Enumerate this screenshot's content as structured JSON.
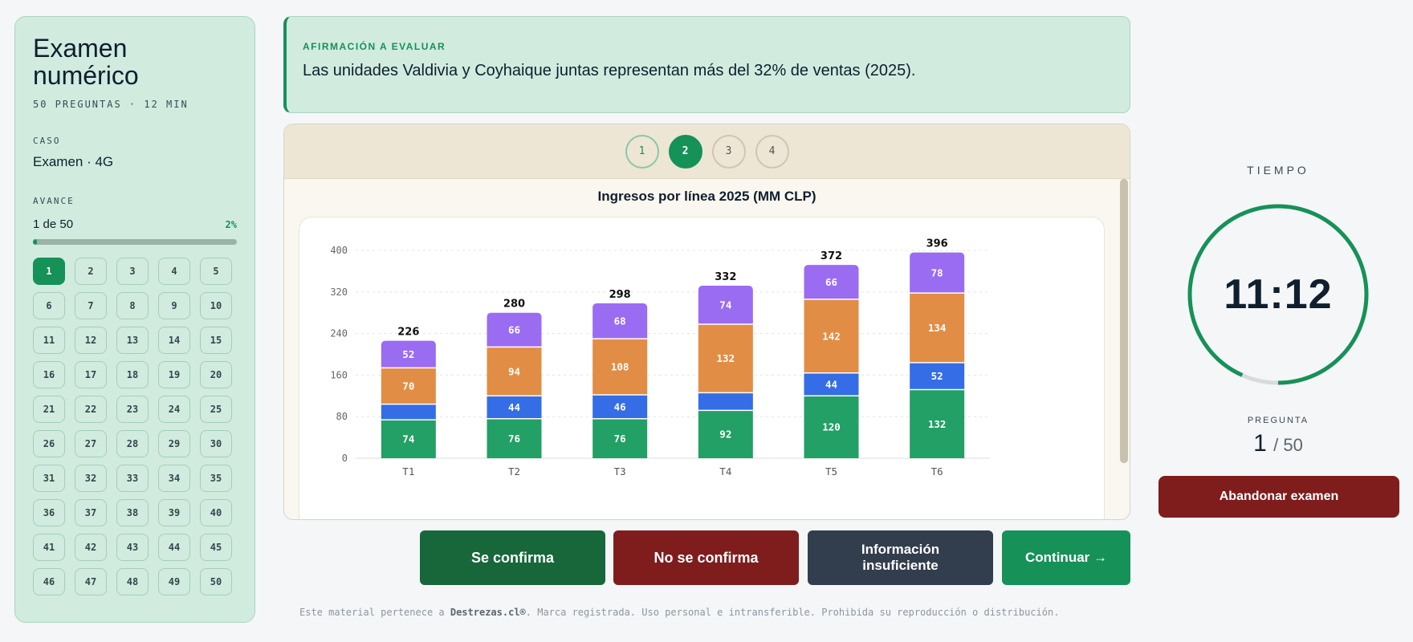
{
  "sidebar": {
    "title": "Examen numérico",
    "subtitle": "50 PREGUNTAS · 12 MIN",
    "caso_label": "CASO",
    "caso_value": "Examen · 4G",
    "avance_label": "AVANCE",
    "avance_text": "1 de 50",
    "avance_pct": "2%",
    "progress_fraction": 0.02,
    "questions": [
      "1",
      "2",
      "3",
      "4",
      "5",
      "6",
      "7",
      "8",
      "9",
      "10",
      "11",
      "12",
      "13",
      "14",
      "15",
      "16",
      "17",
      "18",
      "19",
      "20",
      "21",
      "22",
      "23",
      "24",
      "25",
      "26",
      "27",
      "28",
      "29",
      "30",
      "31",
      "32",
      "33",
      "34",
      "35",
      "36",
      "37",
      "38",
      "39",
      "40",
      "41",
      "42",
      "43",
      "44",
      "45",
      "46",
      "47",
      "48",
      "49",
      "50"
    ],
    "active_question": "1"
  },
  "statement": {
    "label": "AFIRMACIÓN A EVALUAR",
    "text": "Las unidades Valdivia y Coyhaique juntas representan más del 32% de ventas (2025)."
  },
  "panel": {
    "tabs": [
      "1",
      "2",
      "3",
      "4"
    ],
    "active_tab": "2",
    "visited_tabs": [
      "1"
    ]
  },
  "chart_data": {
    "type": "bar",
    "stacked": true,
    "title": "Ingresos por línea 2025 (MM CLP)",
    "categories": [
      "T1",
      "T2",
      "T3",
      "T4",
      "T5",
      "T6"
    ],
    "series": [
      {
        "values": [
          74,
          76,
          76,
          92,
          120,
          132
        ],
        "color": "#22a065"
      },
      {
        "values": [
          30,
          44,
          46,
          34,
          44,
          52
        ],
        "color": "#356de6"
      },
      {
        "values": [
          70,
          94,
          108,
          132,
          142,
          134
        ],
        "color": "#e28d45"
      },
      {
        "values": [
          52,
          66,
          68,
          74,
          66,
          78
        ],
        "color": "#9a6cf2"
      }
    ],
    "totals": [
      226,
      280,
      298,
      332,
      372,
      396
    ],
    "yticks": [
      0,
      80,
      160,
      240,
      320,
      400
    ],
    "ylim": [
      0,
      400
    ],
    "grid": true
  },
  "buttons": {
    "confirm": "Se confirma",
    "not_confirm": "No se confirma",
    "insufficient": "Información insuficiente",
    "continue": "Continuar →"
  },
  "footer": {
    "prefix": "Este material pertenece a ",
    "brand": "Destrezas.cl®",
    "suffix": ". Marca registrada. Uso personal e intransferible. Prohibida su reproducción o distribución."
  },
  "timer": {
    "label": "TIEMPO",
    "value": "11:12",
    "remaining_fraction": 0.933,
    "color": "#169158"
  },
  "question_counter": {
    "label": "PREGUNTA",
    "current": "1",
    "total": "/ 50"
  },
  "exit_button": "Abandonar examen"
}
